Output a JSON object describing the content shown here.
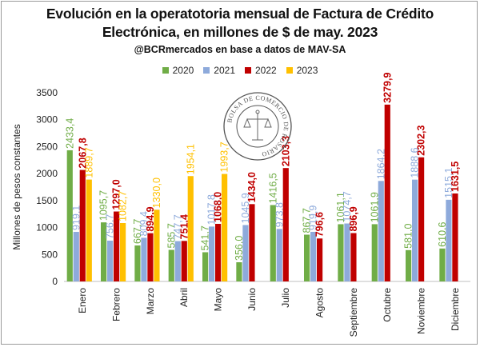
{
  "title_line1": "Evolución en la operatotoria mensual de Factura de Crédito",
  "title_line2": "Electrónica, en millones de $ de may. 2023",
  "subtitle": "@BCRmercados en base a datos de MAV-SA",
  "seal_text": "BOLSA DE COMERCIO DE ROSARIO",
  "chart_data": {
    "type": "bar",
    "ylabel": "Millones de pesos constantes",
    "ylim": [
      0,
      3500
    ],
    "yticks": [
      0,
      500,
      1000,
      1500,
      2000,
      2500,
      3000,
      3500
    ],
    "legend_position": "top",
    "grid": false,
    "categories": [
      "Enero",
      "Febrero",
      "Marzo",
      "Abril",
      "Mayo",
      "Junio",
      "Julio",
      "Agosto",
      "Septiembre",
      "Octubre",
      "Noviembre",
      "Diciembre"
    ],
    "series": [
      {
        "name": "2020",
        "color": "#70ad47",
        "values": [
          2433.4,
          1095.7,
          667.7,
          585.7,
          541.7,
          356.0,
          1416.5,
          867.7,
          1061.1,
          1061.9,
          581.0,
          610.6
        ],
        "labels": [
          "2433,4",
          "1095,7",
          "667,7",
          "585,7",
          "541,7",
          "356,0",
          "1416,5",
          "867,7",
          "1061,1",
          "1061,9",
          "581,0",
          "610,6"
        ]
      },
      {
        "name": "2021",
        "color": "#8eaadb",
        "values": [
          919.1,
          756.7,
          809.4,
          747.7,
          1017.8,
          1045.9,
          973.8,
          919.9,
          1074.7,
          1864.2,
          1888.6,
          1515.1
        ],
        "labels": [
          "919,1",
          "756,7",
          "809,4",
          "747,7",
          "1017,8",
          "1045,9",
          "973,8",
          "919,9",
          "1074,7",
          "1864,2",
          "1888,6",
          "1515,1"
        ]
      },
      {
        "name": "2022",
        "color": "#c00000",
        "values": [
          2067.8,
          1297.0,
          894.9,
          751.4,
          1068.0,
          1434.0,
          2103.3,
          796.6,
          896.9,
          3279.9,
          2302.3,
          1631.5
        ],
        "labels": [
          "2067,8",
          "1297,0",
          "894,9",
          "751,4",
          "1068,0",
          "1434,0",
          "2103,3",
          "796,6",
          "896,9",
          "3279,9",
          "2302,3",
          "1631,5"
        ]
      },
      {
        "name": "2023",
        "color": "#ffc000",
        "values": [
          1889.7,
          1082.7,
          1330.0,
          1954.1,
          1993.7,
          null,
          null,
          null,
          null,
          null,
          null,
          null
        ],
        "labels": [
          "1889,7",
          "1082,7",
          "1330,0",
          "1954,1",
          "1993,7",
          null,
          null,
          null,
          null,
          null,
          null,
          null
        ]
      }
    ]
  }
}
